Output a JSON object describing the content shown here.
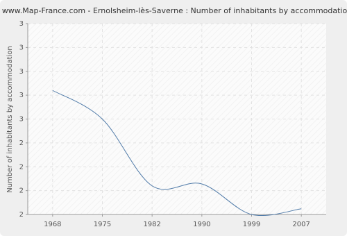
{
  "chart_data": {
    "type": "line",
    "title": "www.Map-France.com - Ernolsheim-lès-Saverne : Number of inhabitants by accommodation",
    "y_label": "Number of inhabitants by accommodation",
    "categories": [
      "1968",
      "1975",
      "1982",
      "1990",
      "1999",
      "2007"
    ],
    "series": [
      {
        "name": "Number of inhabitants by accommodation",
        "color": "#4f7aa8",
        "values": [
          2.65,
          2.5,
          2.15,
          2.16,
          2.0,
          2.03
        ]
      }
    ],
    "ylim": [
      2,
      3
    ],
    "yticks": [
      {
        "value": 2,
        "label": "2"
      },
      {
        "value": 2.125,
        "label": "2"
      },
      {
        "value": 2.25,
        "label": "2"
      },
      {
        "value": 2.375,
        "label": "2"
      },
      {
        "value": 2.5,
        "label": "3"
      },
      {
        "value": 2.625,
        "label": "3"
      },
      {
        "value": 2.75,
        "label": "3"
      },
      {
        "value": 2.875,
        "label": "3"
      },
      {
        "value": 3,
        "label": "3"
      }
    ],
    "grid": true
  }
}
